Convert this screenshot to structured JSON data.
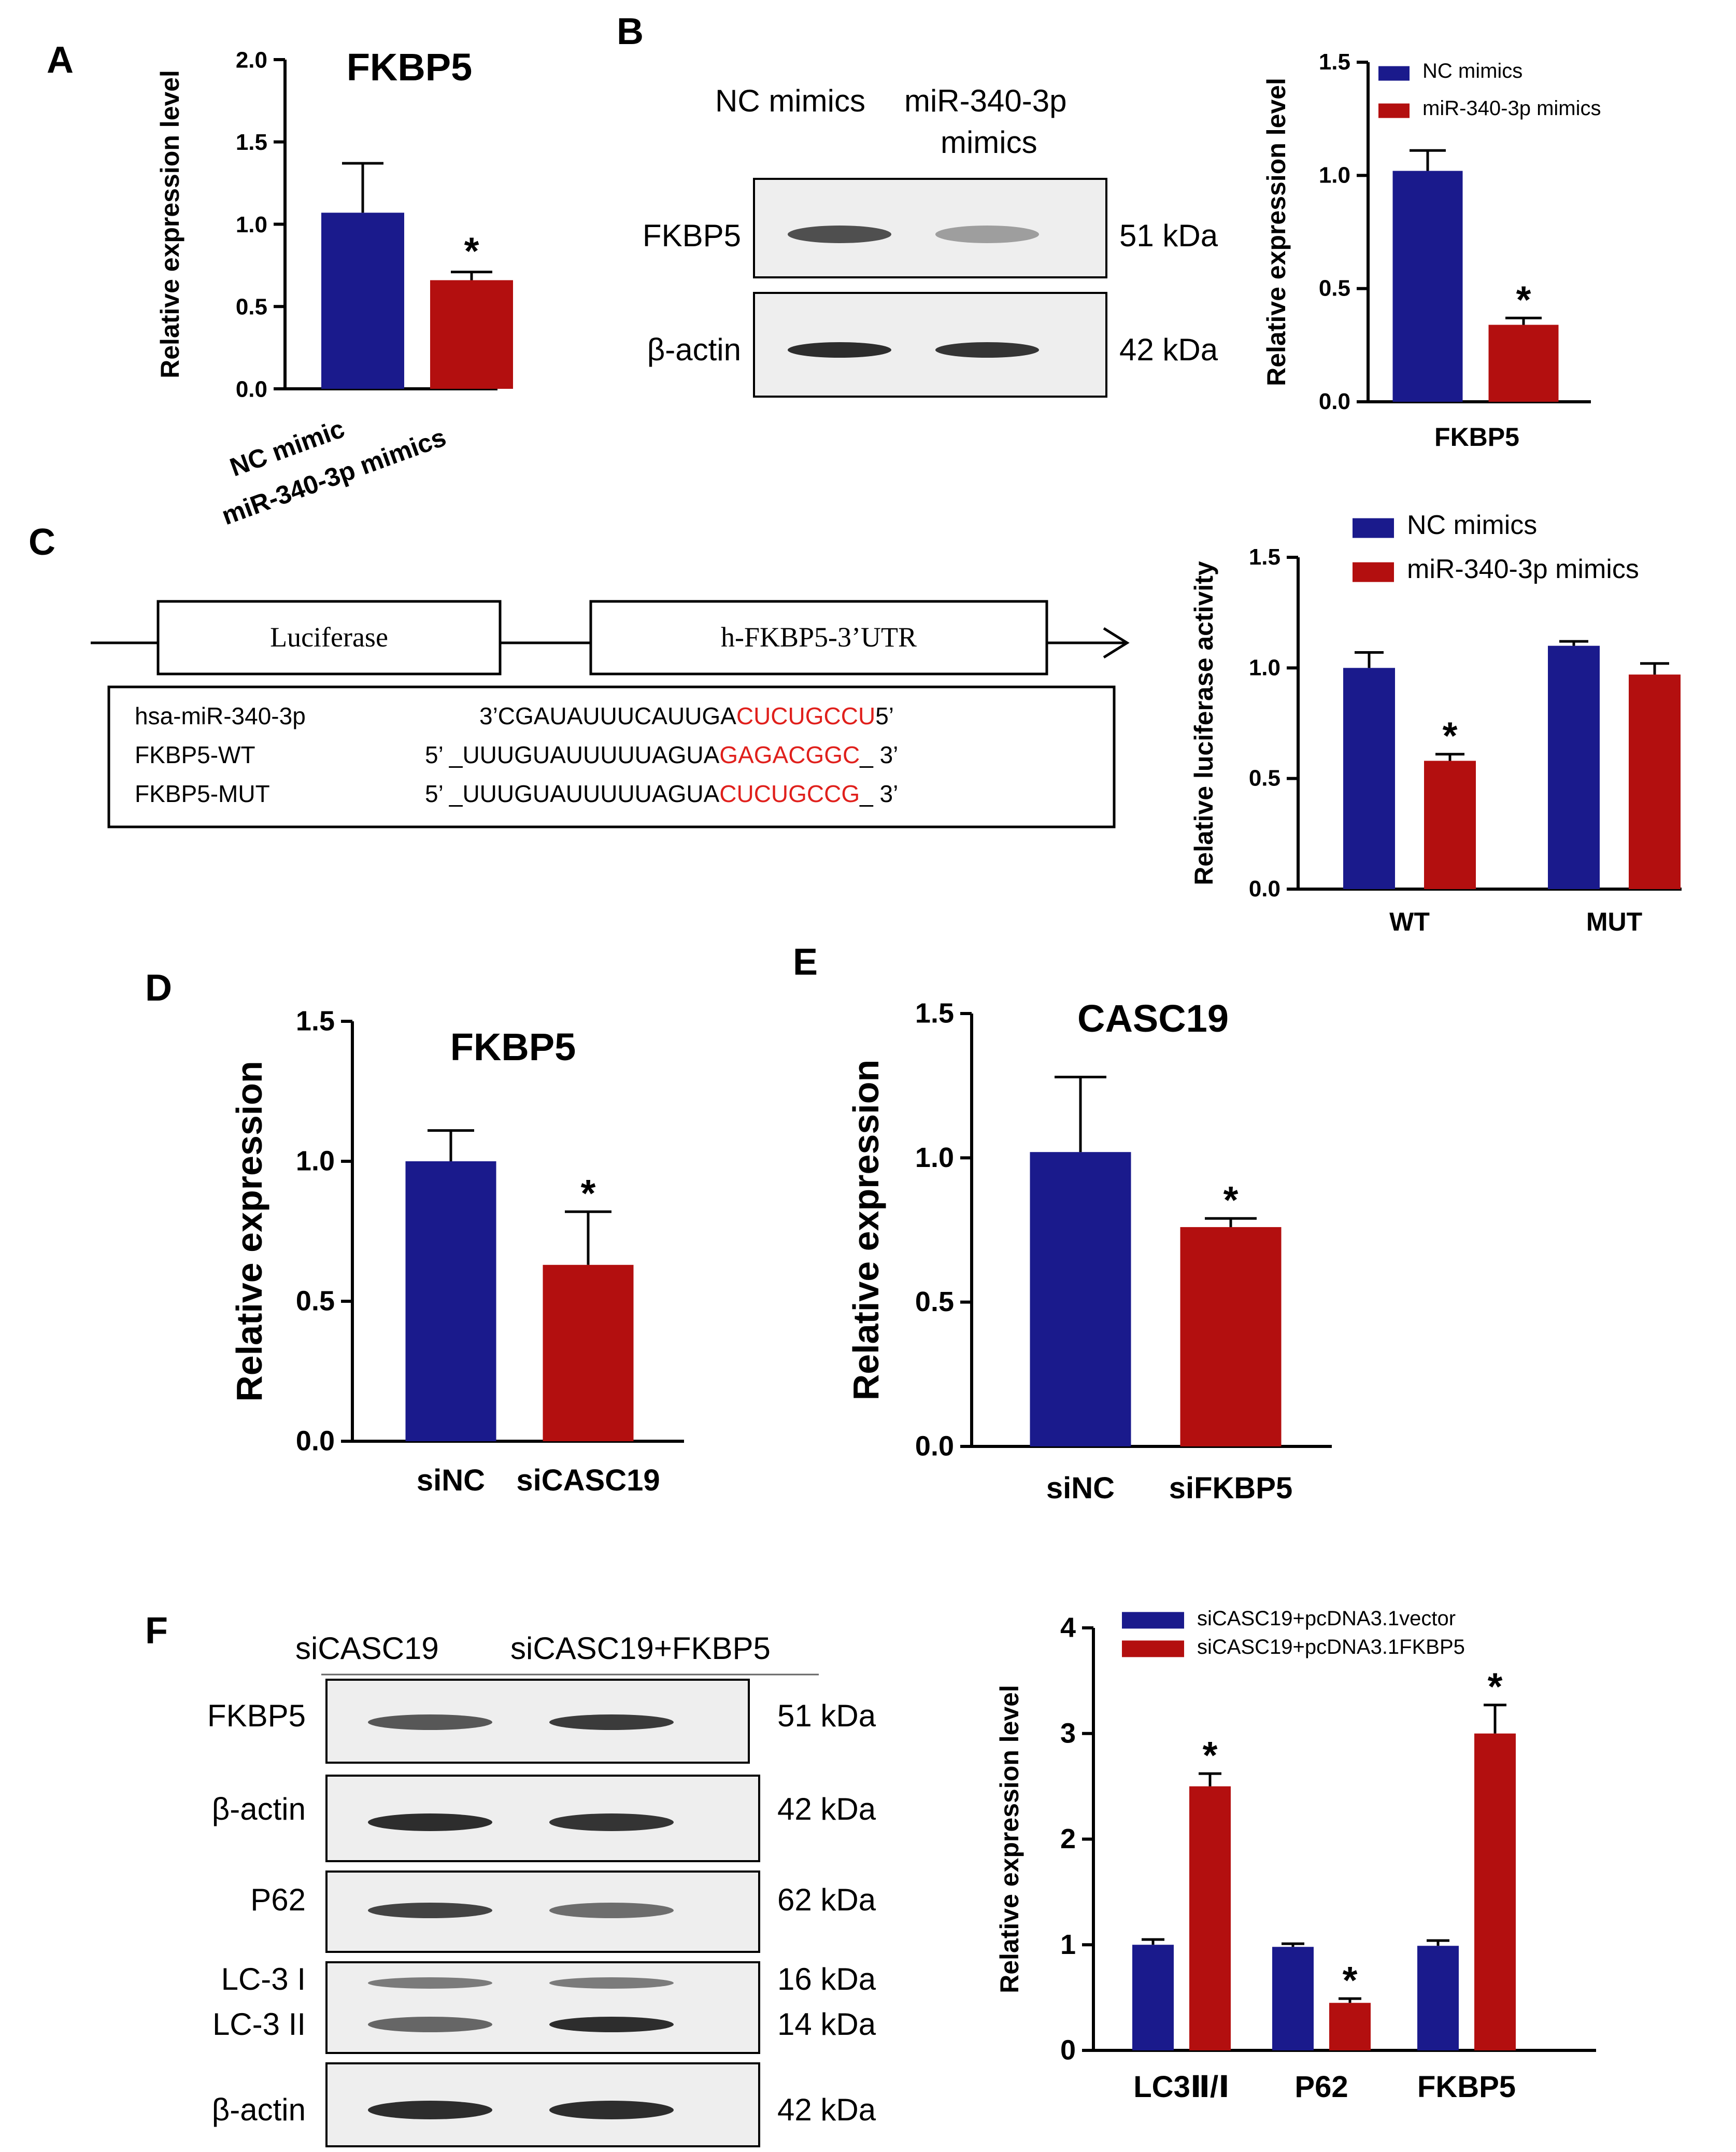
{
  "colors": {
    "nc": "#1a1a8c",
    "treat": "#b30f0f",
    "seq_red": "#e0201c",
    "blot_bg": "#eeeeee",
    "band": "#222222"
  },
  "panels": {
    "A": "A",
    "B": "B",
    "C": "C",
    "D": "D",
    "E": "E",
    "F": "F"
  },
  "chart_data": [
    {
      "id": "A",
      "type": "bar",
      "title": "FKBP5",
      "ylabel": "Relative expression level",
      "categories": [
        "NC mimic",
        "miR-340-3p mimics"
      ],
      "values": [
        1.07,
        0.66
      ],
      "errors": [
        0.3,
        0.05
      ],
      "colors": [
        "nc",
        "treat"
      ],
      "ylim": [
        0,
        2.0
      ],
      "yticks": [
        "0.0",
        "0.5",
        "1.0",
        "1.5",
        "2.0"
      ],
      "significance": [
        "",
        "*"
      ]
    },
    {
      "id": "B",
      "type": "bar",
      "title": "",
      "xlabel": "FKBP5",
      "ylabel": "Relative expression level",
      "categories": [
        "NC mimics",
        "miR-340-3p mimics"
      ],
      "values": [
        1.02,
        0.34
      ],
      "errors": [
        0.09,
        0.03
      ],
      "colors": [
        "nc",
        "treat"
      ],
      "ylim": [
        0,
        1.5
      ],
      "yticks": [
        "0.0",
        "0.5",
        "1.0",
        "1.5"
      ],
      "legend": [
        "NC mimics",
        "miR-340-3p mimics"
      ],
      "significance": [
        "",
        "*"
      ]
    },
    {
      "id": "C",
      "type": "bar",
      "ylabel": "Relative  luciferase activity",
      "categories": [
        "WT",
        "MUT"
      ],
      "series": [
        {
          "name": "NC mimics",
          "values": [
            1.0,
            1.1
          ],
          "errors": [
            0.07,
            0.02
          ]
        },
        {
          "name": "miR-340-3p mimics",
          "values": [
            0.58,
            0.97
          ],
          "errors": [
            0.03,
            0.05
          ]
        }
      ],
      "ylim": [
        0,
        1.5
      ],
      "yticks": [
        "0.0",
        "0.5",
        "1.0",
        "1.5"
      ],
      "significance": [
        [
          "",
          "*"
        ],
        [
          "",
          ""
        ]
      ]
    },
    {
      "id": "D",
      "type": "bar",
      "title": "FKBP5",
      "ylabel": "Relative expression",
      "categories": [
        "siNC",
        "siCASC19"
      ],
      "values": [
        1.0,
        0.63
      ],
      "errors": [
        0.11,
        0.19
      ],
      "colors": [
        "nc",
        "treat"
      ],
      "ylim": [
        0,
        1.5
      ],
      "yticks": [
        "0.0",
        "0.5",
        "1.0",
        "1.5"
      ],
      "significance": [
        "",
        "*"
      ]
    },
    {
      "id": "E",
      "type": "bar",
      "title": "CASC19",
      "ylabel": "Relative expression",
      "categories": [
        "siNC",
        "siFKBP5"
      ],
      "values": [
        1.02,
        0.76
      ],
      "errors": [
        0.26,
        0.03
      ],
      "colors": [
        "nc",
        "treat"
      ],
      "ylim": [
        0,
        1.5
      ],
      "yticks": [
        "0.0",
        "0.5",
        "1.0",
        "1.5"
      ],
      "significance": [
        "",
        "*"
      ]
    },
    {
      "id": "F",
      "type": "bar",
      "ylabel": "Relative expression level",
      "categories": [
        "LC3Ⅱ/Ⅰ",
        "P62",
        "FKBP5"
      ],
      "series": [
        {
          "name": "siCASC19+pcDNA3.1vector",
          "values": [
            1.0,
            0.98,
            0.99
          ],
          "errors": [
            0.05,
            0.03,
            0.05
          ]
        },
        {
          "name": "siCASC19+pcDNA3.1FKBP5",
          "values": [
            2.5,
            0.45,
            3.0
          ],
          "errors": [
            0.12,
            0.04,
            0.27
          ]
        }
      ],
      "ylim": [
        0,
        4
      ],
      "yticks": [
        "0",
        "1",
        "2",
        "3",
        "4"
      ],
      "significance": [
        [
          "",
          "*"
        ],
        [
          "",
          "*"
        ],
        [
          "",
          "*"
        ]
      ]
    }
  ],
  "blotB": {
    "lanes": [
      "NC mimics",
      "miR-340-3p",
      "mimics"
    ],
    "rows": [
      {
        "label": "FKBP5",
        "kda": "51 kDa",
        "intensity": [
          0.75,
          0.2
        ]
      },
      {
        "label": "β-actin",
        "kda": "42 kDa",
        "intensity": [
          1.0,
          0.95
        ]
      }
    ]
  },
  "blotF": {
    "lanes": [
      "siCASC19",
      "siCASC19+FKBP5"
    ],
    "rows": [
      {
        "label": "FKBP5",
        "kda": "51 kDa",
        "intensity": [
          0.7,
          0.9
        ]
      },
      {
        "label": "β-actin",
        "kda": "42 kDa",
        "intensity": [
          1.0,
          0.95
        ]
      },
      {
        "label": "P62",
        "kda": "62 kDa",
        "intensity": [
          0.85,
          0.55
        ]
      },
      {
        "label": "LC-3 I",
        "kda": "16 kDa",
        "intensity": [
          0.45,
          0.45
        ]
      },
      {
        "label": "LC-3 II",
        "kda": "14 kDa",
        "intensity": [
          0.6,
          1.0
        ]
      },
      {
        "label": "β-actin",
        "kda": "42 kDa",
        "intensity": [
          1.0,
          1.0
        ]
      }
    ]
  },
  "construct": {
    "box1": "Luciferase",
    "box2": "h-FKBP5-3’UTR",
    "seqs": [
      {
        "name": "hsa-miR-340-3p",
        "prefix": "3’CGAUAUUUCAUUGA",
        "highlight": "CUCUGCCU",
        "suffix": "5’"
      },
      {
        "name": "FKBP5-WT",
        "prefix": "5’ _UUUGUAUUUUUAGUA",
        "highlight": "GAGACGGC",
        "suffix": "_  3’"
      },
      {
        "name": "FKBP5-MUT",
        "prefix": "5’ _UUUGUAUUUUUAGUA",
        "highlight": "CUCUGCCG",
        "suffix": "_  3’"
      }
    ]
  }
}
